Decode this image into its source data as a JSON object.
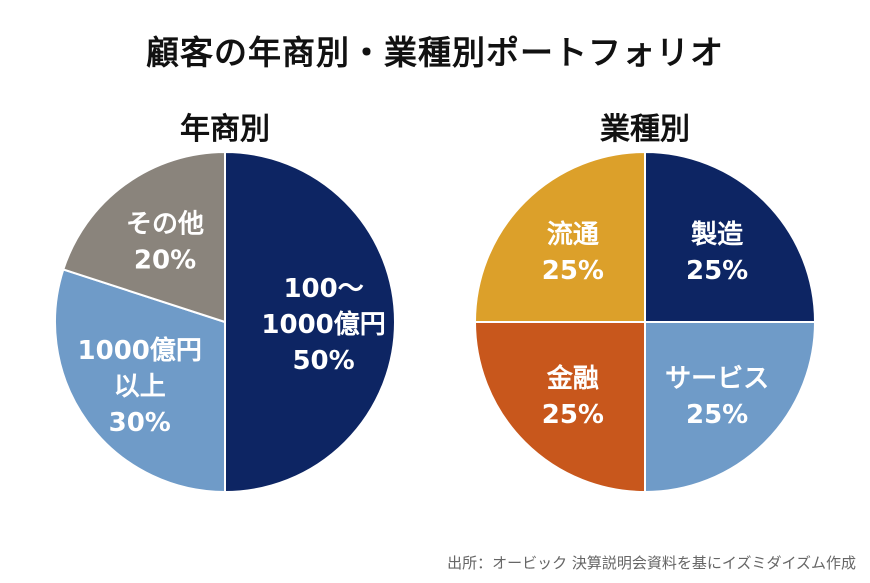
{
  "title": "顧客の年商別・業種別ポートフォリオ",
  "source": "出所：オービック 決算説明会資料を基にイズミダイズム作成",
  "chart_data": [
    {
      "type": "pie",
      "title": "年商別",
      "slices": [
        {
          "lines": [
            "100〜",
            "1000億円",
            "50%"
          ],
          "value": 50,
          "color": "#0d2563"
        },
        {
          "lines": [
            "1000億円",
            "以上",
            "30%"
          ],
          "value": 30,
          "color": "#6f9bc8"
        },
        {
          "lines": [
            "その他",
            "20%"
          ],
          "value": 20,
          "color": "#8a847c"
        }
      ]
    },
    {
      "type": "pie",
      "title": "業種別",
      "slices": [
        {
          "lines": [
            "製造",
            "25%"
          ],
          "value": 25,
          "color": "#0d2563"
        },
        {
          "lines": [
            "サービス",
            "25%"
          ],
          "value": 25,
          "color": "#6f9bc8"
        },
        {
          "lines": [
            "金融",
            "25%"
          ],
          "value": 25,
          "color": "#c8571c"
        },
        {
          "lines": [
            "流通",
            "25%"
          ],
          "value": 25,
          "color": "#dca02a"
        }
      ]
    }
  ]
}
